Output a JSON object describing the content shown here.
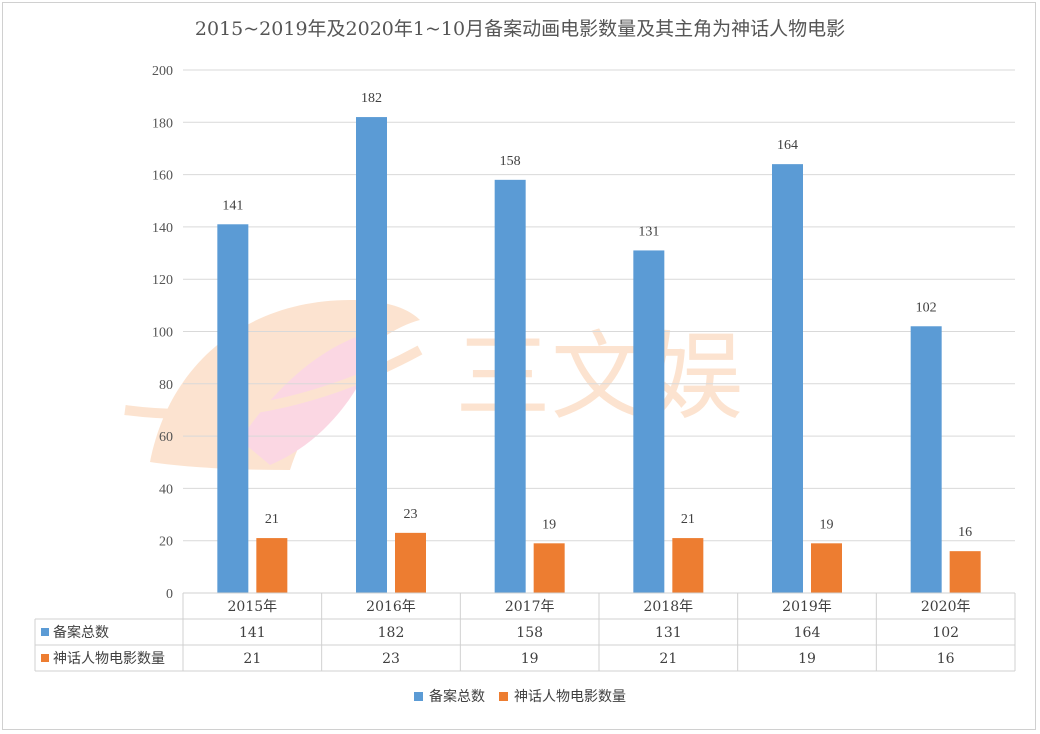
{
  "chart_data": {
    "type": "bar",
    "title": "2015~2019年及2020年1~10月备案动画电影数量及其主角为神话人物电影",
    "categories": [
      "2015年",
      "2016年",
      "2017年",
      "2018年",
      "2019年",
      "2020年"
    ],
    "series": [
      {
        "name": "备案总数",
        "values": [
          141,
          182,
          158,
          131,
          164,
          102
        ],
        "color": "#5b9bd5"
      },
      {
        "name": "神话人物电影数量",
        "values": [
          21,
          23,
          19,
          21,
          19,
          16
        ],
        "color": "#ed7d31"
      }
    ],
    "ylim": [
      0,
      200
    ],
    "yticks": [
      0,
      20,
      40,
      60,
      80,
      100,
      120,
      140,
      160,
      180,
      200
    ],
    "grid": true,
    "legend": "bottom",
    "data_table": true
  },
  "watermark": {
    "text": "三文娱"
  }
}
